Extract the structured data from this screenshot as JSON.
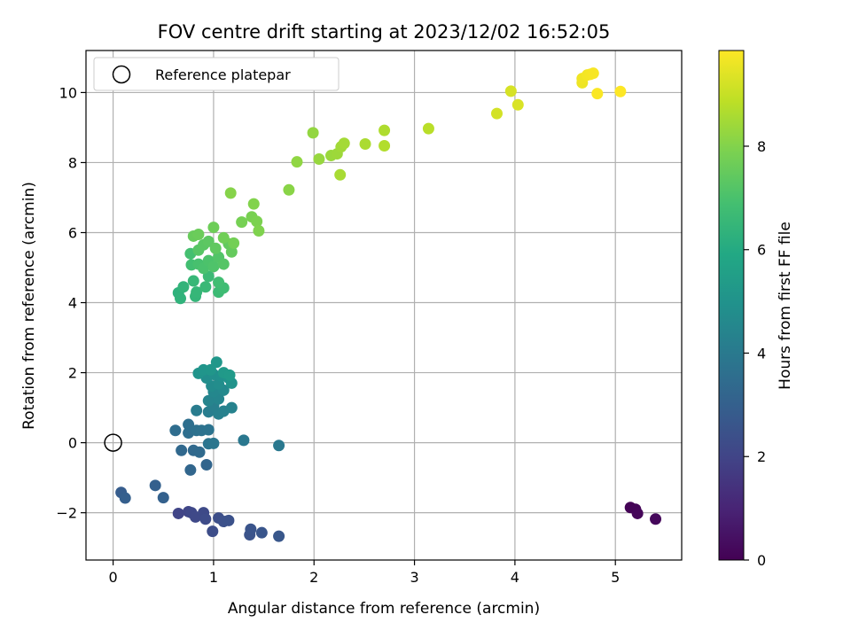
{
  "chart_data": {
    "type": "scatter",
    "title": "FOV centre drift starting at 2023/12/02 16:52:05",
    "xlabel": "Angular distance from reference (arcmin)",
    "ylabel": "Rotation from reference (arcmin)",
    "xlim": [
      -0.27,
      5.66
    ],
    "ylim": [
      -3.35,
      11.2
    ],
    "xticks": [
      0,
      1,
      2,
      3,
      4,
      5
    ],
    "yticks": [
      -2,
      0,
      2,
      4,
      6,
      8,
      10
    ],
    "grid": true,
    "legend": {
      "placement": "top-left",
      "entries": [
        "Reference platepar"
      ]
    },
    "reference_point": {
      "x": 0,
      "y": 0
    },
    "colorbar": {
      "label": "Hours from first FF file",
      "range": [
        0,
        9.85
      ],
      "ticks": [
        0,
        2,
        4,
        6,
        8
      ],
      "colormap": "viridis"
    },
    "points": [
      [
        5.15,
        -1.85,
        0.05
      ],
      [
        5.2,
        -1.9,
        0.1
      ],
      [
        5.22,
        -2.02,
        0.15
      ],
      [
        5.4,
        -2.18,
        0.2
      ],
      [
        0.65,
        -2.02,
        2.0
      ],
      [
        0.75,
        -1.97,
        2.05
      ],
      [
        0.78,
        -2.0,
        2.1
      ],
      [
        0.82,
        -2.12,
        2.15
      ],
      [
        0.9,
        -2.0,
        2.2
      ],
      [
        0.92,
        -2.18,
        2.25
      ],
      [
        0.99,
        -2.53,
        2.3
      ],
      [
        1.05,
        -2.15,
        2.35
      ],
      [
        1.1,
        -2.25,
        2.4
      ],
      [
        1.15,
        -2.22,
        2.45
      ],
      [
        1.36,
        -2.63,
        2.5
      ],
      [
        1.37,
        -2.47,
        2.55
      ],
      [
        1.48,
        -2.57,
        2.6
      ],
      [
        1.65,
        -2.67,
        2.65
      ],
      [
        0.08,
        -1.42,
        2.9
      ],
      [
        0.12,
        -1.58,
        2.95
      ],
      [
        0.42,
        -1.22,
        3.0
      ],
      [
        0.5,
        -1.57,
        3.05
      ],
      [
        0.93,
        -0.63,
        3.2
      ],
      [
        0.77,
        -0.78,
        3.25
      ],
      [
        0.68,
        -0.22,
        3.3
      ],
      [
        0.8,
        -0.22,
        3.35
      ],
      [
        0.86,
        -0.27,
        3.4
      ],
      [
        0.62,
        0.35,
        3.5
      ],
      [
        0.75,
        0.28,
        3.55
      ],
      [
        0.75,
        0.52,
        3.6
      ],
      [
        0.83,
        0.35,
        3.65
      ],
      [
        0.88,
        0.35,
        3.7
      ],
      [
        0.95,
        0.37,
        3.75
      ],
      [
        0.95,
        -0.03,
        3.8
      ],
      [
        1.0,
        -0.02,
        3.85
      ],
      [
        1.3,
        0.07,
        3.9
      ],
      [
        1.65,
        -0.08,
        3.95
      ],
      [
        0.83,
        0.92,
        4.1
      ],
      [
        0.95,
        0.88,
        4.15
      ],
      [
        1.0,
        1.05,
        4.2
      ],
      [
        1.05,
        0.82,
        4.25
      ],
      [
        1.1,
        0.9,
        4.3
      ],
      [
        1.18,
        1.0,
        4.35
      ],
      [
        0.95,
        1.2,
        4.4
      ],
      [
        1.05,
        1.25,
        4.45
      ],
      [
        1.0,
        1.45,
        4.55
      ],
      [
        1.1,
        1.5,
        4.6
      ],
      [
        0.98,
        1.62,
        4.7
      ],
      [
        1.05,
        1.68,
        4.75
      ],
      [
        0.93,
        1.85,
        4.8
      ],
      [
        1.0,
        1.95,
        4.85
      ],
      [
        1.08,
        1.9,
        4.9
      ],
      [
        1.15,
        1.85,
        4.95
      ],
      [
        1.18,
        1.7,
        5.0
      ],
      [
        0.85,
        1.98,
        5.05
      ],
      [
        0.9,
        2.08,
        5.1
      ],
      [
        0.97,
        2.08,
        5.15
      ],
      [
        1.03,
        2.3,
        5.2
      ],
      [
        1.1,
        2.0,
        5.25
      ],
      [
        1.16,
        1.93,
        5.3
      ],
      [
        0.65,
        4.28,
        6.3
      ],
      [
        0.67,
        4.12,
        6.35
      ],
      [
        0.7,
        4.45,
        6.4
      ],
      [
        0.82,
        4.18,
        6.45
      ],
      [
        0.83,
        4.3,
        6.5
      ],
      [
        0.8,
        4.62,
        6.55
      ],
      [
        0.92,
        4.45,
        6.6
      ],
      [
        0.95,
        4.75,
        6.65
      ],
      [
        1.05,
        4.3,
        6.7
      ],
      [
        1.1,
        4.42,
        6.75
      ],
      [
        1.05,
        4.58,
        6.8
      ],
      [
        0.78,
        5.08,
        6.85
      ],
      [
        0.77,
        5.4,
        6.9
      ],
      [
        0.85,
        5.1,
        6.95
      ],
      [
        0.9,
        4.98,
        7.0
      ],
      [
        0.95,
        5.2,
        7.05
      ],
      [
        1.0,
        5.03,
        7.1
      ],
      [
        1.05,
        5.3,
        7.15
      ],
      [
        1.1,
        5.1,
        7.2
      ],
      [
        0.85,
        5.5,
        7.25
      ],
      [
        0.9,
        5.65,
        7.3
      ],
      [
        0.95,
        5.75,
        7.35
      ],
      [
        1.02,
        5.55,
        7.4
      ],
      [
        1.15,
        5.68,
        7.45
      ],
      [
        1.18,
        5.45,
        7.5
      ],
      [
        0.8,
        5.9,
        7.55
      ],
      [
        0.85,
        5.95,
        7.6
      ],
      [
        1.0,
        6.15,
        7.65
      ],
      [
        1.1,
        5.85,
        7.7
      ],
      [
        1.2,
        5.7,
        7.75
      ],
      [
        1.28,
        6.3,
        7.8
      ],
      [
        1.38,
        6.45,
        7.85
      ],
      [
        1.43,
        6.32,
        7.9
      ],
      [
        1.45,
        6.05,
        7.95
      ],
      [
        1.4,
        6.82,
        8.0
      ],
      [
        1.17,
        7.13,
        8.05
      ],
      [
        1.75,
        7.22,
        8.1
      ],
      [
        1.83,
        8.02,
        8.2
      ],
      [
        1.99,
        8.85,
        8.25
      ],
      [
        2.05,
        8.1,
        8.3
      ],
      [
        2.17,
        8.2,
        8.35
      ],
      [
        2.23,
        8.25,
        8.4
      ],
      [
        2.27,
        8.45,
        8.45
      ],
      [
        2.3,
        8.55,
        8.5
      ],
      [
        2.26,
        7.65,
        8.55
      ],
      [
        2.51,
        8.53,
        8.6
      ],
      [
        2.7,
        8.92,
        8.65
      ],
      [
        2.7,
        8.48,
        8.7
      ],
      [
        3.14,
        8.97,
        8.8
      ],
      [
        3.82,
        9.4,
        9.2
      ],
      [
        3.96,
        10.04,
        9.25
      ],
      [
        4.03,
        9.65,
        9.3
      ],
      [
        4.67,
        10.28,
        9.6
      ],
      [
        4.67,
        10.4,
        9.65
      ],
      [
        4.72,
        10.5,
        9.7
      ],
      [
        4.75,
        10.52,
        9.72
      ],
      [
        4.78,
        10.55,
        9.75
      ],
      [
        4.82,
        9.97,
        9.8
      ],
      [
        5.05,
        10.03,
        9.85
      ]
    ]
  }
}
